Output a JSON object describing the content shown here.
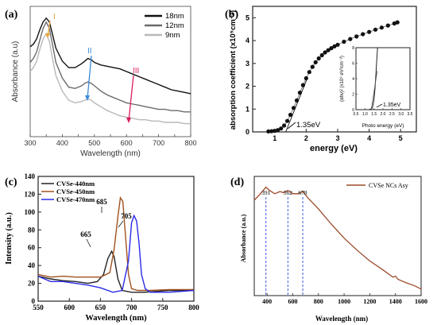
{
  "panel_labels": [
    "(a)",
    "(b)",
    "(c)",
    "(d)"
  ],
  "chart_data": [
    {
      "type": "line",
      "panel": "(a)",
      "xlabel": "Wavelength (nm)",
      "ylabel": "Absorbance (a.u)",
      "xlim": [
        300,
        800
      ],
      "xticks": [
        "300",
        "350",
        "400",
        "450",
        "500",
        "550",
        "600",
        "650",
        "700",
        "750",
        "800"
      ],
      "yticks": [],
      "legend_position": "top-right",
      "annotations": [
        {
          "text": "I",
          "x": 350,
          "color": "#e8a33a"
        },
        {
          "text": "II",
          "x": 478,
          "color": "#3a8ad8"
        },
        {
          "text": "III",
          "x": 610,
          "color": "#d81e5b"
        }
      ],
      "series": [
        {
          "name": "18nm",
          "color": "#111111",
          "x": [
            300,
            310,
            320,
            330,
            340,
            350,
            360,
            370,
            380,
            400,
            420,
            440,
            460,
            470,
            480,
            490,
            500,
            520,
            540,
            560,
            580,
            600,
            620,
            640,
            660,
            680,
            700,
            720,
            740,
            760,
            780,
            800
          ],
          "y": [
            0.74,
            0.76,
            0.8,
            0.87,
            0.93,
            0.96,
            0.93,
            0.83,
            0.73,
            0.63,
            0.58,
            0.58,
            0.61,
            0.63,
            0.65,
            0.64,
            0.62,
            0.6,
            0.59,
            0.58,
            0.57,
            0.55,
            0.53,
            0.51,
            0.49,
            0.47,
            0.45,
            0.43,
            0.41,
            0.4,
            0.39,
            0.38
          ]
        },
        {
          "name": "12nm",
          "color": "#6b6b6b",
          "x": [
            300,
            310,
            320,
            330,
            340,
            350,
            360,
            370,
            380,
            400,
            420,
            440,
            460,
            470,
            480,
            490,
            500,
            520,
            540,
            560,
            580,
            600,
            620,
            640,
            660,
            680,
            700,
            720,
            740,
            760,
            780,
            800
          ],
          "y": [
            0.62,
            0.65,
            0.7,
            0.79,
            0.88,
            0.93,
            0.88,
            0.75,
            0.62,
            0.5,
            0.43,
            0.42,
            0.44,
            0.46,
            0.47,
            0.46,
            0.44,
            0.4,
            0.37,
            0.35,
            0.33,
            0.31,
            0.3,
            0.29,
            0.28,
            0.27,
            0.26,
            0.26,
            0.25,
            0.25,
            0.24,
            0.24
          ]
        },
        {
          "name": "9nm",
          "color": "#b8b8b8",
          "x": [
            300,
            310,
            320,
            330,
            340,
            350,
            360,
            370,
            380,
            400,
            420,
            440,
            460,
            470,
            480,
            490,
            500,
            520,
            540,
            560,
            580,
            600,
            620,
            640,
            660,
            680,
            700,
            720,
            740,
            760,
            780,
            800
          ],
          "y": [
            0.55,
            0.58,
            0.63,
            0.72,
            0.8,
            0.84,
            0.78,
            0.64,
            0.52,
            0.4,
            0.33,
            0.31,
            0.32,
            0.33,
            0.34,
            0.33,
            0.31,
            0.28,
            0.25,
            0.23,
            0.21,
            0.2,
            0.19,
            0.18,
            0.18,
            0.17,
            0.17,
            0.16,
            0.16,
            0.16,
            0.15,
            0.15
          ]
        }
      ]
    },
    {
      "type": "scatter",
      "panel": "(b)",
      "xlabel": "energy (eV)",
      "ylabel": "absorption coefficient (x10⁵cm⁻¹)",
      "xlim": [
        0.3,
        5.5
      ],
      "ylim": [
        0,
        5.5
      ],
      "xticks": [
        "1",
        "2",
        "3",
        "4",
        "5"
      ],
      "yticks": [
        "0",
        "1",
        "2",
        "3",
        "4",
        "5"
      ],
      "annotation": "1.35eV",
      "series": [
        {
          "name": "absorption coefficient",
          "x": [
            0.8,
            0.9,
            1.0,
            1.1,
            1.2,
            1.3,
            1.4,
            1.5,
            1.6,
            1.7,
            1.8,
            1.9,
            2.0,
            2.1,
            2.2,
            2.3,
            2.4,
            2.5,
            2.6,
            2.7,
            2.8,
            2.9,
            3.0,
            3.2,
            3.4,
            3.6,
            3.8,
            4.0,
            4.2,
            4.4,
            4.6,
            4.8,
            4.9
          ],
          "y": [
            0.02,
            0.03,
            0.05,
            0.08,
            0.15,
            0.28,
            0.48,
            0.75,
            1.05,
            1.38,
            1.72,
            2.05,
            2.35,
            2.62,
            2.85,
            3.05,
            3.22,
            3.36,
            3.48,
            3.58,
            3.67,
            3.75,
            3.82,
            3.95,
            4.07,
            4.18,
            4.28,
            4.38,
            4.48,
            4.57,
            4.66,
            4.75,
            4.8
          ]
        }
      ],
      "inset": {
        "xlabel": "Photo energy  (eV)",
        "ylabel": "(αhν)² (x10⁹ eV²cm⁻²)",
        "xlim": [
          0.5,
          3.5
        ],
        "ylim": [
          0,
          8
        ],
        "xticks": [
          "0.5",
          "1.0",
          "1.5",
          "2.0",
          "2.5",
          "3.0",
          "3.5"
        ],
        "yticks": [
          "0",
          "2",
          "4",
          "6",
          "8"
        ],
        "annotation": "1.35eV",
        "x": [
          1.2,
          1.3,
          1.4,
          1.45,
          1.5,
          1.55,
          1.6,
          1.65,
          1.7
        ],
        "y": [
          0.0,
          0.05,
          0.2,
          0.6,
          1.3,
          2.5,
          4.2,
          6.3,
          8.0
        ]
      }
    },
    {
      "type": "line",
      "panel": "(c)",
      "xlabel": "Wavelength (nm)",
      "ylabel": "Intensity (a.u.)",
      "xlim": [
        550,
        800
      ],
      "ylim": [
        0,
        140
      ],
      "xticks": [
        "550",
        "600",
        "650",
        "700",
        "750",
        "800"
      ],
      "yticks": [
        "0",
        "20",
        "40",
        "60",
        "80",
        "100",
        "120",
        "140"
      ],
      "legend_position": "top-left",
      "peak_labels": [
        {
          "text": "665",
          "x": 665,
          "y": 70
        },
        {
          "text": "685",
          "x": 685,
          "y": 130
        },
        {
          "text": "705",
          "x": 705,
          "y": 108
        }
      ],
      "series": [
        {
          "name": "CVSe-440nm",
          "color": "#222222",
          "x": [
            550,
            570,
            590,
            610,
            630,
            645,
            655,
            662,
            668,
            672,
            678,
            685,
            700,
            720,
            740,
            760,
            780,
            800
          ],
          "y": [
            28,
            25,
            23,
            22,
            20,
            22,
            30,
            48,
            56,
            50,
            25,
            12,
            10,
            10,
            11,
            12,
            12,
            13
          ]
        },
        {
          "name": "CVSe-450nm",
          "color": "#a0521e",
          "x": [
            550,
            570,
            590,
            610,
            630,
            650,
            665,
            672,
            678,
            682,
            686,
            690,
            695,
            700,
            710,
            730,
            760,
            800
          ],
          "y": [
            30,
            27,
            28,
            27,
            27,
            27,
            32,
            58,
            95,
            116,
            112,
            75,
            30,
            14,
            12,
            12,
            13,
            13
          ]
        },
        {
          "name": "CVSe-470nm",
          "color": "#2a2ae8",
          "x": [
            550,
            570,
            590,
            610,
            630,
            650,
            670,
            685,
            695,
            700,
            704,
            708,
            712,
            716,
            722,
            730,
            760,
            800
          ],
          "y": [
            28,
            22,
            22,
            20,
            18,
            15,
            10,
            12,
            45,
            88,
            96,
            90,
            65,
            30,
            14,
            10,
            10,
            12
          ]
        }
      ]
    },
    {
      "type": "line",
      "panel": "(d)",
      "xlabel": "Wavelength (nm)",
      "ylabel": "Absorbance (a.u.)",
      "xlim": [
        300,
        1600
      ],
      "xticks": [
        "400",
        "600",
        "800",
        "1000",
        "1200",
        "1400",
        "1600"
      ],
      "yticks": [],
      "legend_position": "top-right",
      "peak_markers": [
        "391",
        "562",
        "678"
      ],
      "peak_positions": [
        391,
        562,
        678
      ],
      "series": [
        {
          "name": "CVSe NCs Asy",
          "color": "#9c4a2a",
          "x": [
            300,
            340,
            370,
            391,
            420,
            460,
            500,
            530,
            562,
            600,
            640,
            678,
            720,
            800,
            900,
            1000,
            1100,
            1200,
            1300,
            1380,
            1400,
            1420,
            1480,
            1550,
            1600
          ],
          "y": [
            0.88,
            0.93,
            0.97,
            1.0,
            0.97,
            0.94,
            0.96,
            0.95,
            0.97,
            0.94,
            0.94,
            0.96,
            0.9,
            0.8,
            0.66,
            0.53,
            0.42,
            0.32,
            0.24,
            0.17,
            0.18,
            0.15,
            0.12,
            0.09,
            0.06
          ]
        }
      ]
    }
  ]
}
